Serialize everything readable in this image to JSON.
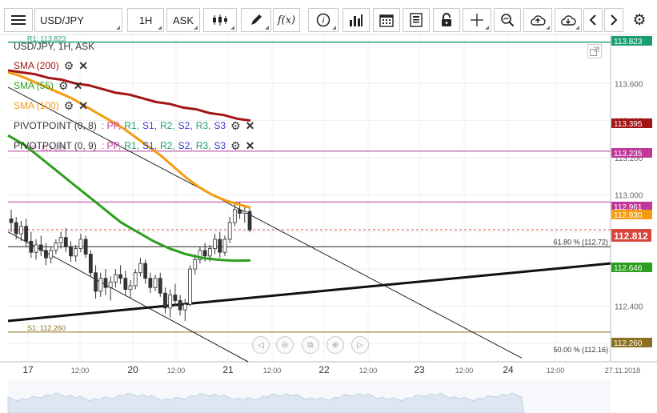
{
  "toolbar": {
    "symbol": "USD/JPY",
    "timeframe": "1H",
    "price_type": "ASK",
    "indicator_label": "f(x)"
  },
  "legend": {
    "instrument": "USD/JPY, 1H, ASK",
    "sma200": {
      "label": "SMA (200)",
      "color": "#a31515"
    },
    "sma55": {
      "label": "SMA (55)",
      "color": "#2e9e1e"
    },
    "sma100": {
      "label": "SMA (100)",
      "color": "#f39c12"
    },
    "pivot1": {
      "name": "PIVOTPOINT (0, 8)",
      "tags": [
        ": PP,",
        "R1,",
        "S1,",
        "R2,",
        "S2,",
        "R3,",
        "S3"
      ]
    },
    "pivot2": {
      "name": "PIVOTPOINT (0, 9)",
      "tags": [
        ": PP,",
        "R1,",
        "S1,",
        "R2,",
        "S2,",
        "R3,",
        "S3"
      ]
    }
  },
  "colors": {
    "pp": "#c0399a",
    "r": "#1a9e6e",
    "s": "#3a3ad0",
    "r1_line": "#23a36f",
    "pivot_line": "#b23c9a",
    "s1_line": "#8a7020",
    "current": "#d9463b"
  },
  "chart_data": {
    "type": "candlestick",
    "symbol": "USD/JPY",
    "timeframe": "1H",
    "price_axis_labels": [
      "113.600",
      "113.400",
      "113.200",
      "113.000",
      "112.800",
      "112.600",
      "112.400",
      "112.200"
    ],
    "time_axis_labels": [
      "17",
      "12:00",
      "20",
      "12:00",
      "21",
      "12:00",
      "22",
      "12:00",
      "23",
      "12:00",
      "24",
      "12:00",
      "27.11.2018"
    ],
    "ylim": [
      112.1,
      113.86
    ],
    "badges": [
      {
        "value": "113.823",
        "color": "#1a9e6e"
      },
      {
        "value": "113.395",
        "color": "#a31515"
      },
      {
        "value": "113.235",
        "color": "#c0399a"
      },
      {
        "value": "112.961",
        "color": "#c0399a"
      },
      {
        "value": "112.930",
        "color": "#f39c12"
      },
      {
        "value": "112.812",
        "color": "#d9463b"
      },
      {
        "value": "112.646",
        "color": "#2e9e1e"
      },
      {
        "value": "112.260",
        "color": "#8a7020"
      }
    ],
    "line_labels": {
      "r1": "R1: 113.823",
      "s1": "S1: 112.260",
      "pp": "PP: 113.235"
    },
    "fibonacci": [
      {
        "label": "61.80 % (112.72)",
        "value": 112.72
      },
      {
        "label": "50.00 % (112.16)",
        "value": 112.16
      }
    ],
    "candles": [
      [
        112.87,
        112.92,
        112.8,
        112.85
      ],
      [
        112.85,
        112.88,
        112.76,
        112.79
      ],
      [
        112.79,
        112.86,
        112.75,
        112.83
      ],
      [
        112.83,
        112.87,
        112.72,
        112.75
      ],
      [
        112.75,
        112.8,
        112.66,
        112.69
      ],
      [
        112.69,
        112.76,
        112.65,
        112.73
      ],
      [
        112.73,
        112.78,
        112.67,
        112.7
      ],
      [
        112.7,
        112.74,
        112.62,
        112.66
      ],
      [
        112.66,
        112.72,
        112.63,
        112.7
      ],
      [
        112.7,
        112.76,
        112.68,
        112.74
      ],
      [
        112.74,
        112.8,
        112.71,
        112.77
      ],
      [
        112.77,
        112.82,
        112.69,
        112.72
      ],
      [
        112.72,
        112.75,
        112.64,
        112.67
      ],
      [
        112.67,
        112.73,
        112.64,
        112.71
      ],
      [
        112.71,
        112.79,
        112.69,
        112.76
      ],
      [
        112.76,
        112.78,
        112.66,
        112.68
      ],
      [
        112.68,
        112.7,
        112.56,
        112.58
      ],
      [
        112.58,
        112.62,
        112.44,
        112.48
      ],
      [
        112.48,
        112.58,
        112.45,
        112.55
      ],
      [
        112.55,
        112.6,
        112.46,
        112.5
      ],
      [
        112.5,
        112.56,
        112.43,
        112.53
      ],
      [
        112.53,
        112.6,
        112.5,
        112.57
      ],
      [
        112.57,
        112.62,
        112.52,
        112.55
      ],
      [
        112.55,
        112.59,
        112.46,
        112.49
      ],
      [
        112.49,
        112.54,
        112.44,
        112.51
      ],
      [
        112.51,
        112.6,
        112.49,
        112.58
      ],
      [
        112.58,
        112.66,
        112.56,
        112.63
      ],
      [
        112.63,
        112.65,
        112.52,
        112.55
      ],
      [
        112.55,
        112.58,
        112.47,
        112.5
      ],
      [
        112.5,
        112.57,
        112.48,
        112.55
      ],
      [
        112.55,
        112.58,
        112.45,
        112.47
      ],
      [
        112.47,
        112.5,
        112.36,
        112.39
      ],
      [
        112.39,
        112.49,
        112.34,
        112.46
      ],
      [
        112.46,
        112.52,
        112.4,
        112.43
      ],
      [
        112.43,
        112.46,
        112.35,
        112.38
      ],
      [
        112.38,
        112.44,
        112.32,
        112.41
      ],
      [
        112.41,
        112.62,
        112.4,
        112.6
      ],
      [
        112.6,
        112.68,
        112.57,
        112.65
      ],
      [
        112.65,
        112.72,
        112.63,
        112.7
      ],
      [
        112.7,
        112.74,
        112.64,
        112.67
      ],
      [
        112.67,
        112.73,
        112.64,
        112.71
      ],
      [
        112.71,
        112.79,
        112.68,
        112.76
      ],
      [
        112.76,
        112.8,
        112.66,
        112.69
      ],
      [
        112.69,
        112.78,
        112.67,
        112.76
      ],
      [
        112.76,
        112.88,
        112.74,
        112.85
      ],
      [
        112.85,
        112.95,
        112.83,
        112.92
      ],
      [
        112.92,
        112.96,
        112.87,
        112.9
      ],
      [
        112.9,
        112.94,
        112.85,
        112.91
      ],
      [
        112.91,
        112.93,
        112.8,
        112.81
      ]
    ],
    "sma200": [
      113.67,
      113.66,
      113.65,
      113.63,
      113.62,
      113.6,
      113.59,
      113.57,
      113.55,
      113.54,
      113.52,
      113.5,
      113.49,
      113.47,
      113.46,
      113.44,
      113.43,
      113.41,
      113.4
    ],
    "sma100": [
      113.66,
      113.64,
      113.61,
      113.58,
      113.55,
      113.52,
      113.48,
      113.44,
      113.4,
      113.36,
      113.31,
      113.26,
      113.21,
      113.15,
      113.09,
      113.04,
      113.0,
      112.97,
      112.95,
      112.93
    ],
    "sma55": [
      113.32,
      113.27,
      113.2,
      113.13,
      113.06,
      112.99,
      112.92,
      112.85,
      112.8,
      112.75,
      112.71,
      112.68,
      112.66,
      112.65,
      112.645,
      112.646
    ],
    "trendlines": "descending channel and ascending support"
  }
}
